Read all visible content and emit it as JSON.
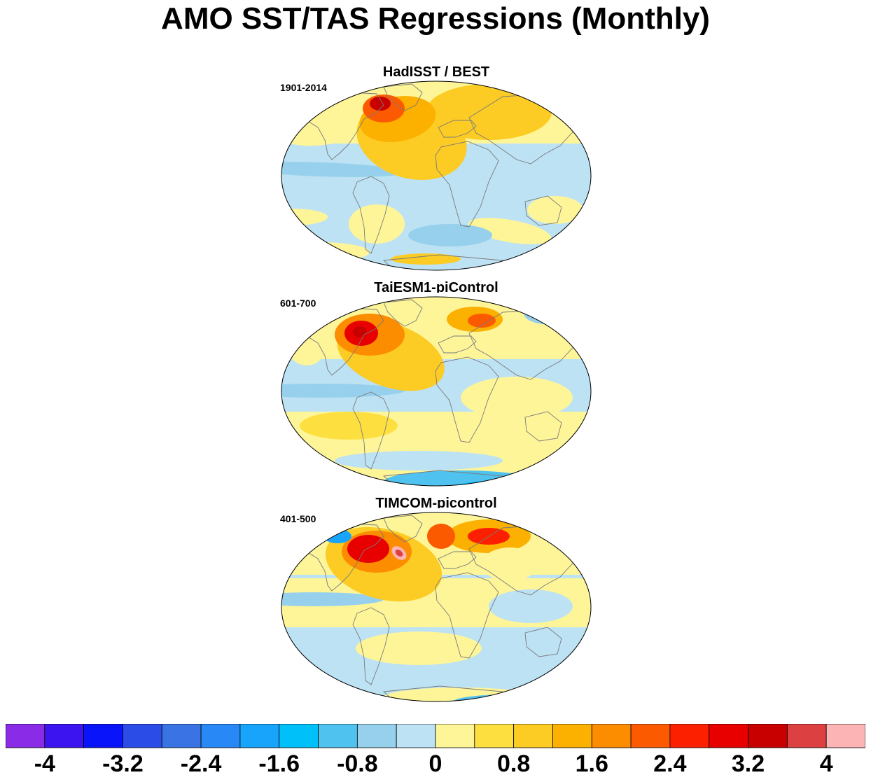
{
  "title": "AMO SST/TAS Regressions (Monthly)",
  "panels": [
    {
      "title": "HadISST / BEST",
      "period": "1901-2014",
      "variant": "obs"
    },
    {
      "title": "TaiESM1-piControl",
      "period": "601-700",
      "variant": "taiesm"
    },
    {
      "title": "TIMCOM-picontrol",
      "period": "401-500",
      "variant": "timcom"
    }
  ],
  "colorbar": {
    "colors": [
      "#8a2be8",
      "#3c14f0",
      "#0a14fa",
      "#2c4ce8",
      "#3a74e4",
      "#2888f5",
      "#18a4fa",
      "#00c0fa",
      "#50c2f0",
      "#96d0ec",
      "#bce2f4",
      "#fef599",
      "#fde040",
      "#fccc24",
      "#fcb000",
      "#fc8c00",
      "#fc5a00",
      "#fc2000",
      "#e80000",
      "#c80000",
      "#dc4040",
      "#fcb4b4"
    ],
    "tick_labels": [
      "-4",
      "-3.2",
      "-2.4",
      "-1.6",
      "-0.8",
      "0",
      "0.8",
      "1.6",
      "2.4",
      "3.2",
      "4"
    ]
  }
}
